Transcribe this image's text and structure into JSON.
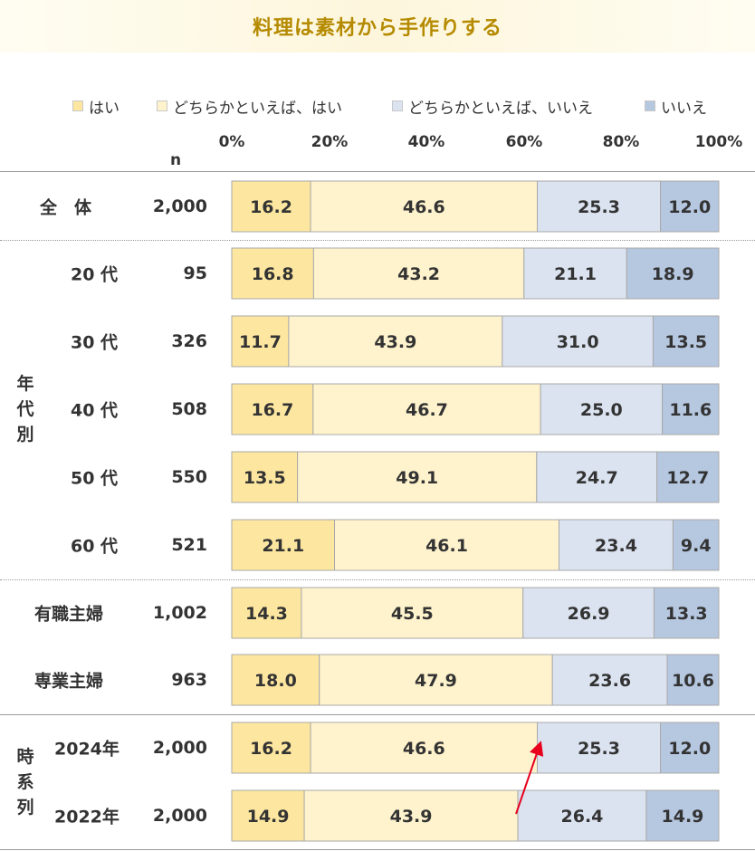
{
  "title": "料理は素材から手作りする",
  "n_header": "n",
  "colors": {
    "title": "#b58a00",
    "segments": [
      "#fde7a0",
      "#fff3cd",
      "#dbe3f0",
      "#b6c7e0"
    ]
  },
  "chart_data": {
    "type": "bar",
    "orientation": "horizontal-stacked-100",
    "title": "料理は素材から手作りする",
    "legend": [
      "はい",
      "どちらかといえば、はい",
      "どちらかといえば、いいえ",
      "いいえ"
    ],
    "legend_position": "top",
    "x_ticks": [
      "0%",
      "20%",
      "40%",
      "60%",
      "80%",
      "100%"
    ],
    "xlim": [
      0,
      100
    ],
    "groups": [
      {
        "label": "",
        "rows": [
          0
        ]
      },
      {
        "label": "年代別",
        "rows": [
          1,
          2,
          3,
          4,
          5
        ]
      },
      {
        "label": "",
        "rows": [
          6,
          7
        ]
      },
      {
        "label": "時系列",
        "rows": [
          8,
          9
        ]
      }
    ],
    "rows": [
      {
        "label": "全　体",
        "n": "2,000",
        "values": [
          16.2,
          46.6,
          25.3,
          12.0
        ],
        "labels": [
          "16.2",
          "46.6",
          "25.3",
          "12.0"
        ]
      },
      {
        "label": "20 代",
        "n": "95",
        "values": [
          16.8,
          43.2,
          21.1,
          18.9
        ],
        "labels": [
          "16.8",
          "43.2",
          "21.1",
          "18.9"
        ]
      },
      {
        "label": "30 代",
        "n": "326",
        "values": [
          11.7,
          43.9,
          31.0,
          13.5
        ],
        "labels": [
          "11.7",
          "43.9",
          "31.0",
          "13.5"
        ]
      },
      {
        "label": "40 代",
        "n": "508",
        "values": [
          16.7,
          46.7,
          25.0,
          11.6
        ],
        "labels": [
          "16.7",
          "46.7",
          "25.0",
          "11.6"
        ]
      },
      {
        "label": "50 代",
        "n": "550",
        "values": [
          13.5,
          49.1,
          24.7,
          12.7
        ],
        "labels": [
          "13.5",
          "49.1",
          "24.7",
          "12.7"
        ]
      },
      {
        "label": "60 代",
        "n": "521",
        "values": [
          21.1,
          46.1,
          23.4,
          9.4
        ],
        "labels": [
          "21.1",
          "46.1",
          "23.4",
          "9.4"
        ]
      },
      {
        "label": "有職主婦",
        "n": "1,002",
        "values": [
          14.3,
          45.5,
          26.9,
          13.3
        ],
        "labels": [
          "14.3",
          "45.5",
          "26.9",
          "13.3"
        ]
      },
      {
        "label": "専業主婦",
        "n": "963",
        "values": [
          18.0,
          47.9,
          23.6,
          10.6
        ],
        "labels": [
          "18.0",
          "47.9",
          "23.6",
          "10.6"
        ]
      },
      {
        "label": "2024年",
        "n": "2,000",
        "values": [
          16.2,
          46.6,
          25.3,
          12.0
        ],
        "labels": [
          "16.2",
          "46.6",
          "25.3",
          "12.0"
        ]
      },
      {
        "label": "2022年",
        "n": "2,000",
        "values": [
          14.9,
          43.9,
          26.4,
          14.9
        ],
        "labels": [
          "14.9",
          "43.9",
          "26.4",
          "14.9"
        ]
      }
    ],
    "annotation": {
      "type": "arrow",
      "color": "#e8001c",
      "from_row": 9,
      "to_row": 8
    }
  }
}
